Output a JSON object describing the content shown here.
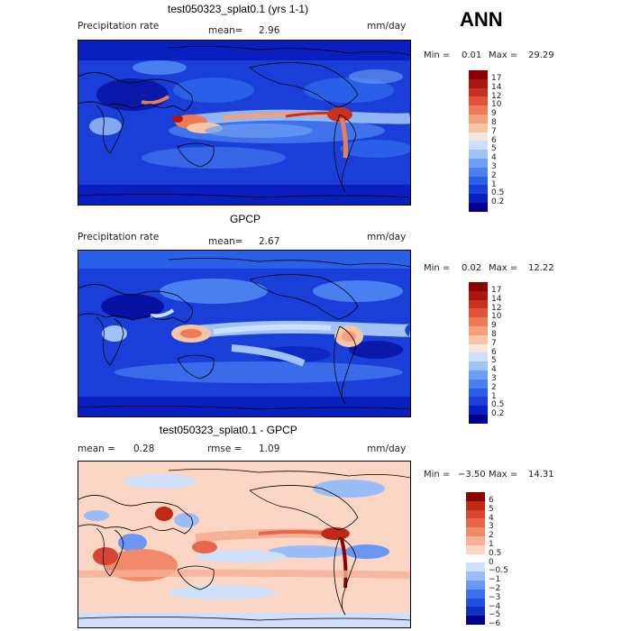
{
  "season": "ANN",
  "colors": {
    "full": [
      "#00008b",
      "#0a1fbf",
      "#1a3fd8",
      "#2a5fe8",
      "#4a7ff0",
      "#6f9ff4",
      "#9fc2f7",
      "#cde0fb",
      "#f5e6de",
      "#f8c4a6",
      "#f3a07c",
      "#ee7b55",
      "#e0553a",
      "#c83020",
      "#a81810",
      "#8b0000"
    ],
    "diff": [
      "#00008b",
      "#1030c0",
      "#2050e0",
      "#3c70f0",
      "#6a96f4",
      "#9bbdf7",
      "#cfe0fb",
      "#ffffff",
      "#fbd6c4",
      "#f6b096",
      "#f08a6a",
      "#e8664a",
      "#d84530",
      "#c02818",
      "#8b0000"
    ]
  },
  "panels": [
    {
      "title": "test050323_splat0.1 (yrs 1-1)",
      "left_label": "Precipitation rate",
      "mean_label": "mean=",
      "mean_value": "2.96",
      "units": "mm/day",
      "min_label": "Min =",
      "min_value": "0.01",
      "max_label": "Max =",
      "max_value": "29.29"
    },
    {
      "title": "GPCP",
      "left_label": "Precipitation rate",
      "mean_label": "mean=",
      "mean_value": "2.67",
      "units": "mm/day",
      "min_label": "Min =",
      "min_value": "0.02",
      "max_label": "Max =",
      "max_value": "12.22"
    },
    {
      "title": "test050323_splat0.1 - GPCP",
      "mean_label": "mean =",
      "mean_value": "0.28",
      "rmse_label": "rmse =",
      "rmse_value": "1.09",
      "units": "mm/day",
      "min_label": "Min =",
      "min_value": "−3.50",
      "max_label": "Max =",
      "max_value": "14.31"
    }
  ],
  "chart_data": [
    {
      "type": "heatmap",
      "title": "test050323_splat0.1 (yrs 1-1)",
      "variable": "Precipitation rate",
      "units": "mm/day",
      "mean": 2.96,
      "min": 0.01,
      "max": 29.29,
      "colorbar_levels": [
        "17",
        "14",
        "12",
        "10",
        "9",
        "8",
        "7",
        "6",
        "5",
        "4",
        "3",
        "2",
        "1",
        "0.5",
        "0.2"
      ]
    },
    {
      "type": "heatmap",
      "title": "GPCP",
      "variable": "Precipitation rate",
      "units": "mm/day",
      "mean": 2.67,
      "min": 0.02,
      "max": 12.22,
      "colorbar_levels": [
        "17",
        "14",
        "12",
        "10",
        "9",
        "8",
        "7",
        "6",
        "5",
        "4",
        "3",
        "2",
        "1",
        "0.5",
        "0.2"
      ]
    },
    {
      "type": "heatmap",
      "title": "test050323_splat0.1 - GPCP",
      "units": "mm/day",
      "mean": 0.28,
      "rmse": 1.09,
      "min": -3.5,
      "max": 14.31,
      "colorbar_levels": [
        "6",
        "5",
        "4",
        "3",
        "2",
        "1",
        "0.5",
        "0",
        "−0.5",
        "−1",
        "−2",
        "−3",
        "−4",
        "−5",
        "−6"
      ]
    }
  ]
}
